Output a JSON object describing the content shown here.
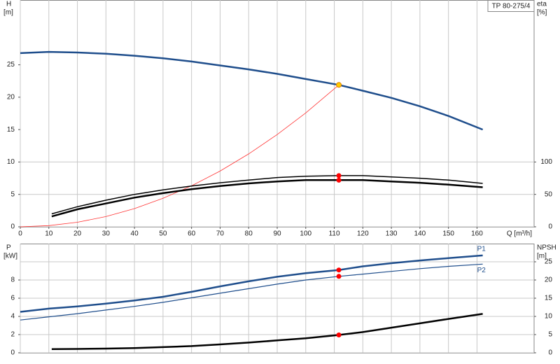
{
  "chart_data": [
    {
      "type": "line",
      "title": "TP 80-275/4",
      "ylabel": "H",
      "yunit": "[m]",
      "y2label": "eta",
      "y2unit": "[%]",
      "xlabel": "Q [m³/h]",
      "xlim": [
        0,
        180
      ],
      "xticks": [
        0,
        10,
        20,
        30,
        40,
        50,
        60,
        70,
        80,
        90,
        100,
        110,
        120,
        130,
        140,
        150,
        160
      ],
      "ylim": [
        0,
        35
      ],
      "yticks": [
        0,
        5,
        10,
        15,
        20,
        25
      ],
      "y2lim": [
        0,
        350
      ],
      "y2ticks": [
        0,
        50,
        100
      ],
      "grid": true,
      "duty_point_q": 111.6,
      "series": [
        {
          "color": "#1f4e8c",
          "line_width": 2.5,
          "marker_color": "#ffcc00",
          "x": [
            0,
            10,
            20,
            30,
            40,
            50,
            60,
            70,
            80,
            90,
            100,
            111.6,
            120,
            130,
            140,
            150,
            162
          ],
          "values": [
            26.8,
            27.0,
            26.9,
            26.7,
            26.4,
            26.0,
            25.5,
            24.9,
            24.3,
            23.6,
            22.8,
            21.9,
            21.0,
            19.9,
            18.6,
            17.1,
            15.0
          ]
        },
        {
          "color": "#ff3333",
          "line_width": 0.8,
          "x": [
            0,
            10,
            20,
            30,
            40,
            50,
            60,
            70,
            80,
            90,
            100,
            111.6
          ],
          "values": [
            0,
            0.18,
            0.7,
            1.58,
            2.81,
            4.4,
            6.33,
            8.6,
            11.25,
            14.24,
            17.58,
            21.9
          ]
        },
        {
          "color": "#000000",
          "line_width": 1.5,
          "axis": "y2",
          "marker_color": "#ff0000",
          "x": [
            11,
            20,
            30,
            40,
            50,
            60,
            70,
            80,
            90,
            100,
            111.6,
            120,
            130,
            140,
            150,
            162
          ],
          "values": [
            20,
            31,
            41,
            50,
            57,
            63,
            68,
            72,
            76,
            78,
            79,
            79,
            77,
            75,
            72,
            67
          ]
        },
        {
          "color": "#000000",
          "line_width": 2.5,
          "axis": "y2",
          "marker_color": "#ff0000",
          "x": [
            11,
            20,
            30,
            40,
            50,
            60,
            70,
            80,
            90,
            100,
            111.6,
            120,
            130,
            140,
            150,
            162
          ],
          "values": [
            16,
            27,
            36,
            45,
            52,
            58,
            63,
            67,
            70,
            72,
            72,
            72,
            70,
            68,
            65,
            61
          ]
        }
      ]
    },
    {
      "type": "line",
      "ylabel": "P",
      "yunit": "[kW]",
      "y2label": "NPSH",
      "y2unit": "[m]",
      "xlim": [
        0,
        180
      ],
      "ylim": [
        0,
        12
      ],
      "yticks": [
        0,
        2,
        4,
        6,
        8
      ],
      "y2lim": [
        0,
        30
      ],
      "y2ticks": [
        0,
        5,
        10,
        15,
        20,
        25
      ],
      "grid": true,
      "duty_point_q": 111.6,
      "series": [
        {
          "name": "P1",
          "color": "#1f4e8c",
          "line_width": 2.5,
          "marker_color": "#ff0000",
          "x": [
            0,
            10,
            20,
            30,
            40,
            50,
            60,
            70,
            80,
            90,
            100,
            111.6,
            120,
            130,
            140,
            150,
            162
          ],
          "values": [
            4.5,
            4.85,
            5.1,
            5.4,
            5.75,
            6.15,
            6.7,
            7.3,
            7.85,
            8.35,
            8.75,
            9.1,
            9.5,
            9.85,
            10.15,
            10.4,
            10.7
          ]
        },
        {
          "name": "P2",
          "color": "#1f4e8c",
          "line_width": 1.2,
          "marker_color": "#ff0000",
          "x": [
            0,
            10,
            20,
            30,
            40,
            50,
            60,
            70,
            80,
            90,
            100,
            111.6,
            120,
            130,
            140,
            150,
            162
          ],
          "values": [
            3.6,
            3.95,
            4.3,
            4.7,
            5.1,
            5.55,
            6.05,
            6.55,
            7.05,
            7.55,
            8.0,
            8.4,
            8.65,
            8.95,
            9.25,
            9.5,
            9.75
          ]
        },
        {
          "color": "#000000",
          "line_width": 2.5,
          "axis": "y2",
          "marker_color": "#ff0000",
          "x": [
            11,
            20,
            30,
            40,
            50,
            60,
            70,
            80,
            90,
            100,
            111.6,
            120,
            130,
            140,
            150,
            162
          ],
          "values": [
            1.0,
            1.05,
            1.15,
            1.3,
            1.55,
            1.85,
            2.3,
            2.8,
            3.4,
            4.0,
            4.9,
            5.7,
            6.9,
            8.1,
            9.3,
            10.7
          ]
        }
      ]
    }
  ]
}
